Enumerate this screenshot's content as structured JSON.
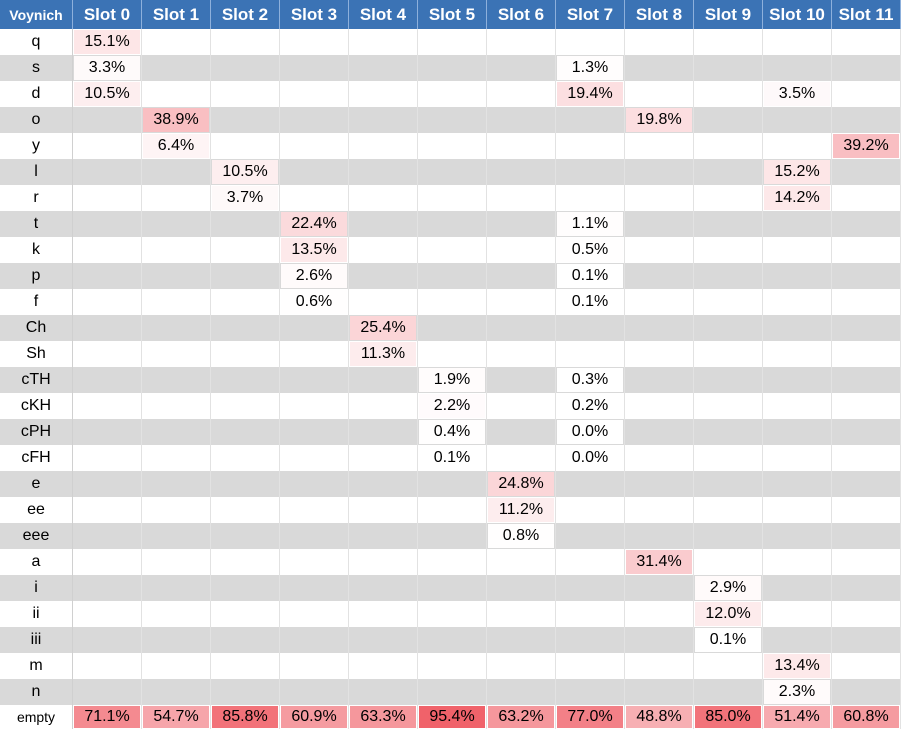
{
  "chart_data": {
    "type": "heatmap",
    "corner_label": "Voynich",
    "columns": [
      "Slot 0",
      "Slot 1",
      "Slot 2",
      "Slot 3",
      "Slot 4",
      "Slot 5",
      "Slot 6",
      "Slot 7",
      "Slot 8",
      "Slot 9",
      "Slot 10",
      "Slot 11"
    ],
    "rows": [
      {
        "label": "q",
        "values": [
          "15.1%",
          "",
          "",
          "",
          "",
          "",
          "",
          "",
          "",
          "",
          "",
          ""
        ]
      },
      {
        "label": "s",
        "values": [
          "3.3%",
          "",
          "",
          "",
          "",
          "",
          "",
          "1.3%",
          "",
          "",
          "",
          ""
        ]
      },
      {
        "label": "d",
        "values": [
          "10.5%",
          "",
          "",
          "",
          "",
          "",
          "",
          "19.4%",
          "",
          "",
          "3.5%",
          ""
        ]
      },
      {
        "label": "o",
        "values": [
          "",
          "38.9%",
          "",
          "",
          "",
          "",
          "",
          "",
          "19.8%",
          "",
          "",
          ""
        ]
      },
      {
        "label": "y",
        "values": [
          "",
          "6.4%",
          "",
          "",
          "",
          "",
          "",
          "",
          "",
          "",
          "",
          "39.2%"
        ]
      },
      {
        "label": "l",
        "values": [
          "",
          "",
          "10.5%",
          "",
          "",
          "",
          "",
          "",
          "",
          "",
          "15.2%",
          ""
        ]
      },
      {
        "label": "r",
        "values": [
          "",
          "",
          "3.7%",
          "",
          "",
          "",
          "",
          "",
          "",
          "",
          "14.2%",
          ""
        ]
      },
      {
        "label": "t",
        "values": [
          "",
          "",
          "",
          "22.4%",
          "",
          "",
          "",
          "1.1%",
          "",
          "",
          "",
          ""
        ]
      },
      {
        "label": "k",
        "values": [
          "",
          "",
          "",
          "13.5%",
          "",
          "",
          "",
          "0.5%",
          "",
          "",
          "",
          ""
        ]
      },
      {
        "label": "p",
        "values": [
          "",
          "",
          "",
          "2.6%",
          "",
          "",
          "",
          "0.1%",
          "",
          "",
          "",
          ""
        ]
      },
      {
        "label": "f",
        "values": [
          "",
          "",
          "",
          "0.6%",
          "",
          "",
          "",
          "0.1%",
          "",
          "",
          "",
          ""
        ]
      },
      {
        "label": "Ch",
        "values": [
          "",
          "",
          "",
          "",
          "25.4%",
          "",
          "",
          "",
          "",
          "",
          "",
          ""
        ]
      },
      {
        "label": "Sh",
        "values": [
          "",
          "",
          "",
          "",
          "11.3%",
          "",
          "",
          "",
          "",
          "",
          "",
          ""
        ]
      },
      {
        "label": "cTH",
        "values": [
          "",
          "",
          "",
          "",
          "",
          "1.9%",
          "",
          "0.3%",
          "",
          "",
          "",
          ""
        ]
      },
      {
        "label": "cKH",
        "values": [
          "",
          "",
          "",
          "",
          "",
          "2.2%",
          "",
          "0.2%",
          "",
          "",
          "",
          ""
        ]
      },
      {
        "label": "cPH",
        "values": [
          "",
          "",
          "",
          "",
          "",
          "0.4%",
          "",
          "0.0%",
          "",
          "",
          "",
          ""
        ]
      },
      {
        "label": "cFH",
        "values": [
          "",
          "",
          "",
          "",
          "",
          "0.1%",
          "",
          "0.0%",
          "",
          "",
          "",
          ""
        ]
      },
      {
        "label": "e",
        "values": [
          "",
          "",
          "",
          "",
          "",
          "",
          "24.8%",
          "",
          "",
          "",
          "",
          ""
        ]
      },
      {
        "label": "ee",
        "values": [
          "",
          "",
          "",
          "",
          "",
          "",
          "11.2%",
          "",
          "",
          "",
          "",
          ""
        ]
      },
      {
        "label": "eee",
        "values": [
          "",
          "",
          "",
          "",
          "",
          "",
          "0.8%",
          "",
          "",
          "",
          "",
          ""
        ]
      },
      {
        "label": "a",
        "values": [
          "",
          "",
          "",
          "",
          "",
          "",
          "",
          "",
          "31.4%",
          "",
          "",
          ""
        ]
      },
      {
        "label": "i",
        "values": [
          "",
          "",
          "",
          "",
          "",
          "",
          "",
          "",
          "",
          "2.9%",
          "",
          ""
        ]
      },
      {
        "label": "ii",
        "values": [
          "",
          "",
          "",
          "",
          "",
          "",
          "",
          "",
          "",
          "12.0%",
          "",
          ""
        ]
      },
      {
        "label": "iii",
        "values": [
          "",
          "",
          "",
          "",
          "",
          "",
          "",
          "",
          "",
          "0.1%",
          "",
          ""
        ]
      },
      {
        "label": "m",
        "values": [
          "",
          "",
          "",
          "",
          "",
          "",
          "",
          "",
          "",
          "",
          "13.4%",
          ""
        ]
      },
      {
        "label": "n",
        "values": [
          "",
          "",
          "",
          "",
          "",
          "",
          "",
          "",
          "",
          "",
          "2.3%",
          ""
        ]
      },
      {
        "label": "empty",
        "values": [
          "71.1%",
          "54.7%",
          "85.8%",
          "60.9%",
          "63.3%",
          "95.4%",
          "63.2%",
          "77.0%",
          "48.8%",
          "85.0%",
          "51.4%",
          "60.8%"
        ]
      }
    ],
    "colors": {
      "header_bg": "#3b73b5",
      "header_text": "#ffffff",
      "stripe": "#d9d9d9",
      "scale_low": "#ffffff",
      "scale_high": "#f0626a"
    }
  }
}
